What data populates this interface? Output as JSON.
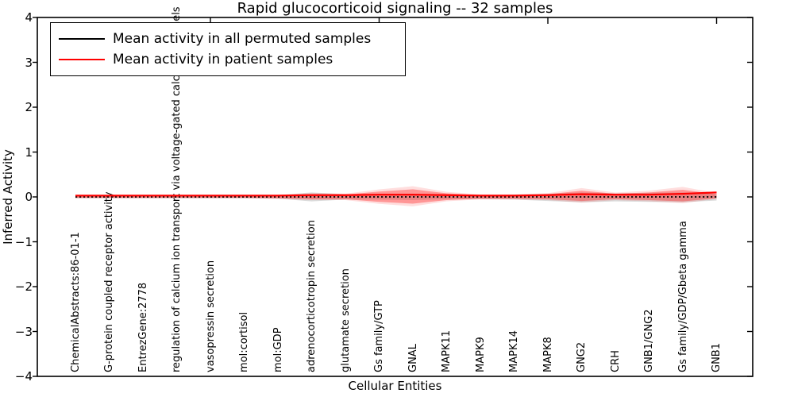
{
  "title": "Rapid glucocorticoid signaling -- 32 samples",
  "axes": {
    "ylabel": "Inferred Activity",
    "xlabel": "Cellular Entities",
    "ytick_labels": [
      "4",
      "3",
      "2",
      "1",
      "0",
      "−1",
      "−2",
      "−3",
      "−4"
    ],
    "ytick_values": [
      4,
      3,
      2,
      1,
      0,
      -1,
      -2,
      -3,
      -4
    ],
    "ylim": [
      -4,
      4
    ]
  },
  "legend": {
    "items": [
      {
        "label": "Mean activity in all permuted samples",
        "color": "#000000"
      },
      {
        "label": "Mean activity in patient samples",
        "color": "#ff0000"
      }
    ]
  },
  "colors": {
    "permuted_line": "#000000",
    "patient_line": "#ff0000",
    "red_fill": "#ff0000",
    "gray_fill": "#999999",
    "axis": "#000000",
    "background": "#ffffff"
  },
  "chart_data": {
    "type": "violin+line",
    "title": "Rapid glucocorticoid signaling -- 32 samples",
    "xlabel": "Cellular Entities",
    "ylabel": "Inferred Activity",
    "ylim": [
      -4,
      4
    ],
    "legend_position": "upper left",
    "grid": false,
    "categories": [
      "ChemicalAbstracts:86-01-1",
      "G-protein coupled receptor activity",
      "EntrezGene:2778",
      "regulation of calcium ion transport via voltage-gated calcium channels",
      "vasopressin secretion",
      "mol:cortisol",
      "mol:GDP",
      "adrenocorticotropin secretion",
      "glutamate secretion",
      "Gs family/GTP",
      "GNAL",
      "MAPK11",
      "MAPK9",
      "MAPK14",
      "MAPK8",
      "GNG2",
      "CRH",
      "GNB1/GNG2",
      "Gs family/GDP/Gbeta gamma",
      "GNB1"
    ],
    "series": [
      {
        "name": "Mean activity in all permuted samples",
        "style": "dotted-black",
        "values": [
          0,
          0,
          0,
          0,
          0,
          0,
          0,
          0,
          0,
          0,
          0,
          0,
          0,
          0,
          0,
          0,
          0,
          0,
          0,
          0
        ]
      },
      {
        "name": "Mean activity in patient samples",
        "style": "solid-red",
        "values": [
          0.03,
          0.03,
          0.03,
          0.03,
          0.03,
          0.03,
          0.03,
          0.04,
          0.04,
          0.05,
          0.05,
          0.04,
          0.03,
          0.03,
          0.04,
          0.06,
          0.05,
          0.05,
          0.07,
          0.1
        ]
      }
    ],
    "bands": {
      "red_upper": [
        0.02,
        0.02,
        0.02,
        0.02,
        0.02,
        0.02,
        0.03,
        0.06,
        0.05,
        0.12,
        0.17,
        0.08,
        0.04,
        0.04,
        0.06,
        0.14,
        0.07,
        0.1,
        0.16,
        0.06
      ],
      "red_lower": [
        0.02,
        0.02,
        0.02,
        0.02,
        0.02,
        0.02,
        0.03,
        0.05,
        0.05,
        0.11,
        0.15,
        0.07,
        0.04,
        0.04,
        0.05,
        0.09,
        0.05,
        0.07,
        0.1,
        0.03
      ],
      "gray_upper": [
        0.03,
        0.03,
        0.03,
        0.03,
        0.03,
        0.03,
        0.04,
        0.1,
        0.06,
        0.06,
        0.07,
        0.05,
        0.04,
        0.05,
        0.07,
        0.1,
        0.08,
        0.09,
        0.1,
        0.07
      ],
      "gray_lower": [
        0.03,
        0.03,
        0.03,
        0.03,
        0.03,
        0.03,
        0.04,
        0.1,
        0.06,
        0.06,
        0.07,
        0.05,
        0.05,
        0.06,
        0.09,
        0.12,
        0.1,
        0.11,
        0.12,
        0.08
      ]
    },
    "top_tick_indices": [
      4,
      9,
      14,
      19
    ]
  }
}
